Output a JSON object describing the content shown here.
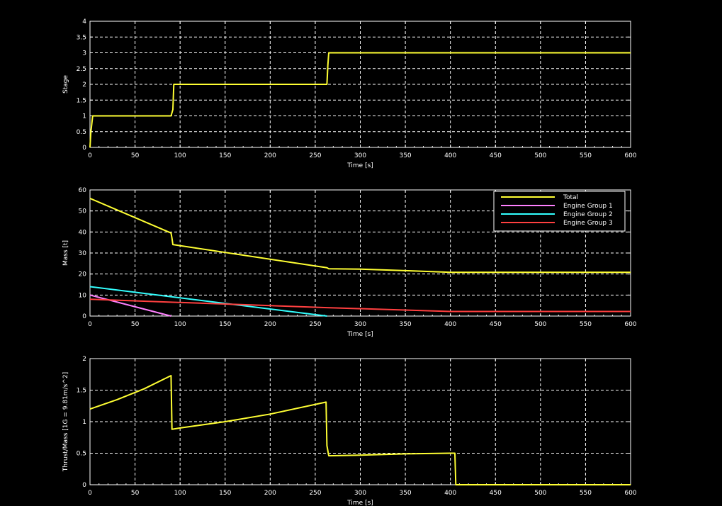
{
  "colors": {
    "background": "#000000",
    "axes": "#ffffff",
    "grid": "#ffffff",
    "total": "#ffff33",
    "group1": "#ff80ff",
    "group2": "#33ffff",
    "group3": "#ff4040"
  },
  "chart_data": [
    {
      "type": "line",
      "xlabel": "Time [s]",
      "ylabel": "Stage",
      "xlim": [
        0,
        600
      ],
      "ylim": [
        0,
        4
      ],
      "xticks": [
        "0",
        "50",
        "100",
        "150",
        "200",
        "250",
        "300",
        "350",
        "400",
        "450",
        "500",
        "550",
        "600"
      ],
      "yticks": [
        "0",
        "0.5",
        "1",
        "1.5",
        "2",
        "2.5",
        "3",
        "3.5",
        "4"
      ],
      "grid": true,
      "series": [
        {
          "color": "#ffff33",
          "x": [
            0,
            1,
            3,
            90,
            92,
            93,
            263,
            264,
            265,
            600
          ],
          "y": [
            0,
            0.5,
            1,
            1,
            1.2,
            2,
            2,
            2.6,
            3,
            3
          ]
        }
      ]
    },
    {
      "type": "line",
      "xlabel": "Time [s]",
      "ylabel": "Mass [t]",
      "xlim": [
        0,
        600
      ],
      "ylim": [
        0,
        60
      ],
      "xticks": [
        "0",
        "50",
        "100",
        "150",
        "200",
        "250",
        "300",
        "350",
        "400",
        "450",
        "500",
        "550",
        "600"
      ],
      "yticks": [
        "0",
        "10",
        "20",
        "30",
        "40",
        "50",
        "60"
      ],
      "grid": true,
      "legend": "top-right",
      "series": [
        {
          "name": "Total",
          "color": "#ffff33",
          "x": [
            0,
            90,
            91,
            92,
            263,
            265,
            300,
            350,
            390,
            400,
            600
          ],
          "y": [
            56,
            39.5,
            37,
            34,
            23,
            22.5,
            22.3,
            21.6,
            21,
            20.8,
            20.8
          ]
        },
        {
          "name": "Engine Group 1",
          "color": "#ff80ff",
          "x": [
            0,
            90
          ],
          "y": [
            10,
            0
          ]
        },
        {
          "name": "Engine Group 2",
          "color": "#33ffff",
          "x": [
            0,
            263
          ],
          "y": [
            14,
            0
          ]
        },
        {
          "name": "Engine Group 3",
          "color": "#ff4040",
          "x": [
            0,
            263,
            400,
            600
          ],
          "y": [
            8,
            4,
            2.2,
            2.2
          ]
        }
      ]
    },
    {
      "type": "line",
      "xlabel": "Time [s]",
      "ylabel": "Thrust/Mass [1G = 9.81m/s^2]",
      "xlim": [
        0,
        600
      ],
      "ylim": [
        0,
        2
      ],
      "xticks": [
        "0",
        "50",
        "100",
        "150",
        "200",
        "250",
        "300",
        "350",
        "400",
        "450",
        "500",
        "550",
        "600"
      ],
      "yticks": [
        "0",
        "0.5",
        "1",
        "1.5",
        "2"
      ],
      "grid": true,
      "series": [
        {
          "color": "#ffff33",
          "x": [
            0,
            30,
            60,
            90,
            91,
            100,
            150,
            200,
            262,
            263,
            265,
            300,
            350,
            400,
            405,
            406,
            600
          ],
          "y": [
            1.2,
            1.35,
            1.52,
            1.73,
            0.88,
            0.9,
            1.0,
            1.12,
            1.31,
            0.62,
            0.46,
            0.47,
            0.49,
            0.5,
            0.5,
            0,
            0
          ]
        }
      ]
    }
  ]
}
